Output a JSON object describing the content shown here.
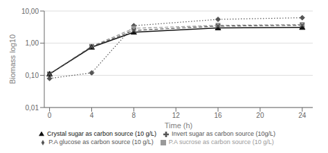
{
  "chart_data": {
    "type": "line",
    "x": [
      0,
      4,
      8,
      16,
      24
    ],
    "series": [
      {
        "name": "P.A glucose as carbon source  (10 g/L)",
        "color": "#555555",
        "marker": "diamond",
        "line_style": "dotted",
        "values": [
          0.08,
          0.12,
          3.5,
          5.5,
          6.2
        ]
      },
      {
        "name": "P.A sucrose as carbon source  (10 g/L)",
        "color": "#999999",
        "marker": "square",
        "line_style": "dashed",
        "values": [
          0.11,
          0.8,
          2.9,
          3.6,
          3.8
        ]
      },
      {
        "name": "Crystal sugar as carbon source  (10 g/L)",
        "color": "#111111",
        "marker": "triangle",
        "line_style": "solid",
        "values": [
          0.11,
          0.75,
          2.2,
          3.0,
          3.1
        ]
      },
      {
        "name": "Invert sugar as carbon source (10g/L)",
        "color": "#555555",
        "marker": "x",
        "line_style": "dashed",
        "values": [
          0.11,
          0.78,
          2.5,
          3.4,
          3.6
        ]
      }
    ],
    "xlabel": "Time (h)",
    "ylabel": "Biomass log10",
    "xlim": [
      -0.5,
      25
    ],
    "xticks": [
      0,
      4,
      8,
      12,
      16,
      20,
      24
    ],
    "ylim": [
      0.01,
      10.0
    ],
    "yticks": [
      {
        "value": 0.01,
        "label": "0,01"
      },
      {
        "value": 0.1,
        "label": "0,10"
      },
      {
        "value": 1.0,
        "label": "1,00"
      },
      {
        "value": 10.0,
        "label": "10,00"
      }
    ],
    "log": "y",
    "grid": "y",
    "legend": "bottom"
  }
}
